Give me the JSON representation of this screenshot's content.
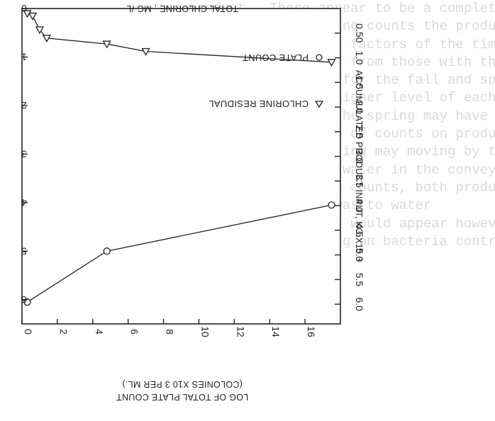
{
  "background_text": {
    "lines": [
      "on product.  These appear to be a complete",
      "re in the sharply rising counts the product",
      "iological and physical factors of the time",
      "is not usually started from those with the pr",
      "counts on the product for the fall and sp",
      "ion of the generally higher level of each of",
      "   Warmer weather in the spring may have",
      "e between the build-up of counts on product",
      "ed products in the spring may moving by the",
      "rate chlorine treated water in the conveyor",
      "influences on bacteria counts, both product",
      "hn chlorinated water was to water",
      "",
      "      chlorine content would appear however",
      "   conventional washing on bacteria control",
      "",
      "",
      "",
      "",
      "",
      "",
      "",
      ""
    ]
  },
  "chart_data": {
    "type": "line",
    "x": {
      "label": "ACCUMULATED PRODUCT INPUT, KG.X10 3",
      "ticks": [
        0,
        2,
        4,
        6,
        8,
        10,
        12,
        14,
        16
      ],
      "range": [
        0,
        18
      ]
    },
    "y_left": {
      "label": "LOG OF TOTAL PLATE COUNT",
      "sublabel": "(COLONIES X10 3 PER ML.)",
      "ticks": [
        6,
        5,
        4,
        3,
        2,
        1,
        0
      ],
      "range": [
        0,
        6.5
      ]
    },
    "y_right": {
      "label": "TOTAL CHLORINE , MG /L",
      "ticks": [
        "6.0",
        "5.5",
        "5.0",
        "4.5",
        "4.0",
        "3.5",
        "3.0",
        "2.5",
        "2.0",
        "1.5",
        "1.0",
        "0.50"
      ],
      "tick_values": [
        6.0,
        5.5,
        5.0,
        4.5,
        4.0,
        3.5,
        3.0,
        2.5,
        2.0,
        1.5,
        1.0,
        0.5
      ],
      "range": [
        0,
        6.4
      ]
    },
    "legend": {
      "items": [
        {
          "marker": "circle",
          "label": "PLATE COUNT"
        },
        {
          "marker": "triangle",
          "label": "CHLORINE RESIDUAL"
        }
      ],
      "position": "top-right"
    },
    "series": [
      {
        "name": "PLATE COUNT",
        "marker": "circle",
        "axis": "left",
        "points": [
          [
            0.3,
            6.05
          ],
          [
            4.8,
            5.0
          ],
          [
            17.5,
            4.05
          ]
        ]
      },
      {
        "name": "CHLORINE RESIDUAL",
        "marker": "triangle",
        "axis": "right",
        "points": [
          [
            0.3,
            0.1
          ],
          [
            0.6,
            0.15
          ],
          [
            1.0,
            0.43
          ],
          [
            1.4,
            0.6
          ],
          [
            4.8,
            0.72
          ],
          [
            7.0,
            0.87
          ],
          [
            17.5,
            1.09
          ]
        ]
      }
    ]
  }
}
